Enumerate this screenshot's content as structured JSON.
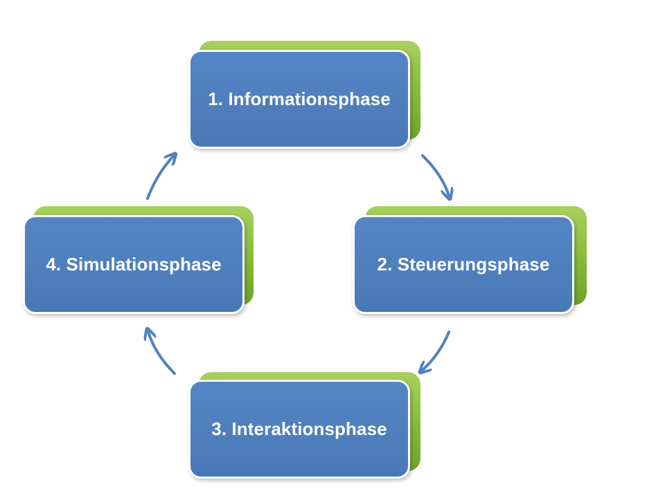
{
  "colors": {
    "box_fill": "#4f81bd",
    "box_border": "#ffffff",
    "shadow_card": "#8cbf3e",
    "arrow": "#4f81bd",
    "text": "#ffffff"
  },
  "phases": [
    {
      "label": "1. Informationsphase"
    },
    {
      "label": "2. Steuerungsphase"
    },
    {
      "label": "3. Interaktionsphase"
    },
    {
      "label": "4. Simulationsphase"
    }
  ],
  "arrows": [
    {
      "from": "1. Informationsphase",
      "to": "2. Steuerungsphase",
      "icon": "curved-arrow-icon"
    },
    {
      "from": "2. Steuerungsphase",
      "to": "3. Interaktionsphase",
      "icon": "curved-arrow-icon"
    },
    {
      "from": "3. Interaktionsphase",
      "to": "4. Simulationsphase",
      "icon": "curved-arrow-icon"
    },
    {
      "from": "4. Simulationsphase",
      "to": "1. Informationsphase",
      "icon": "curved-arrow-icon"
    }
  ]
}
